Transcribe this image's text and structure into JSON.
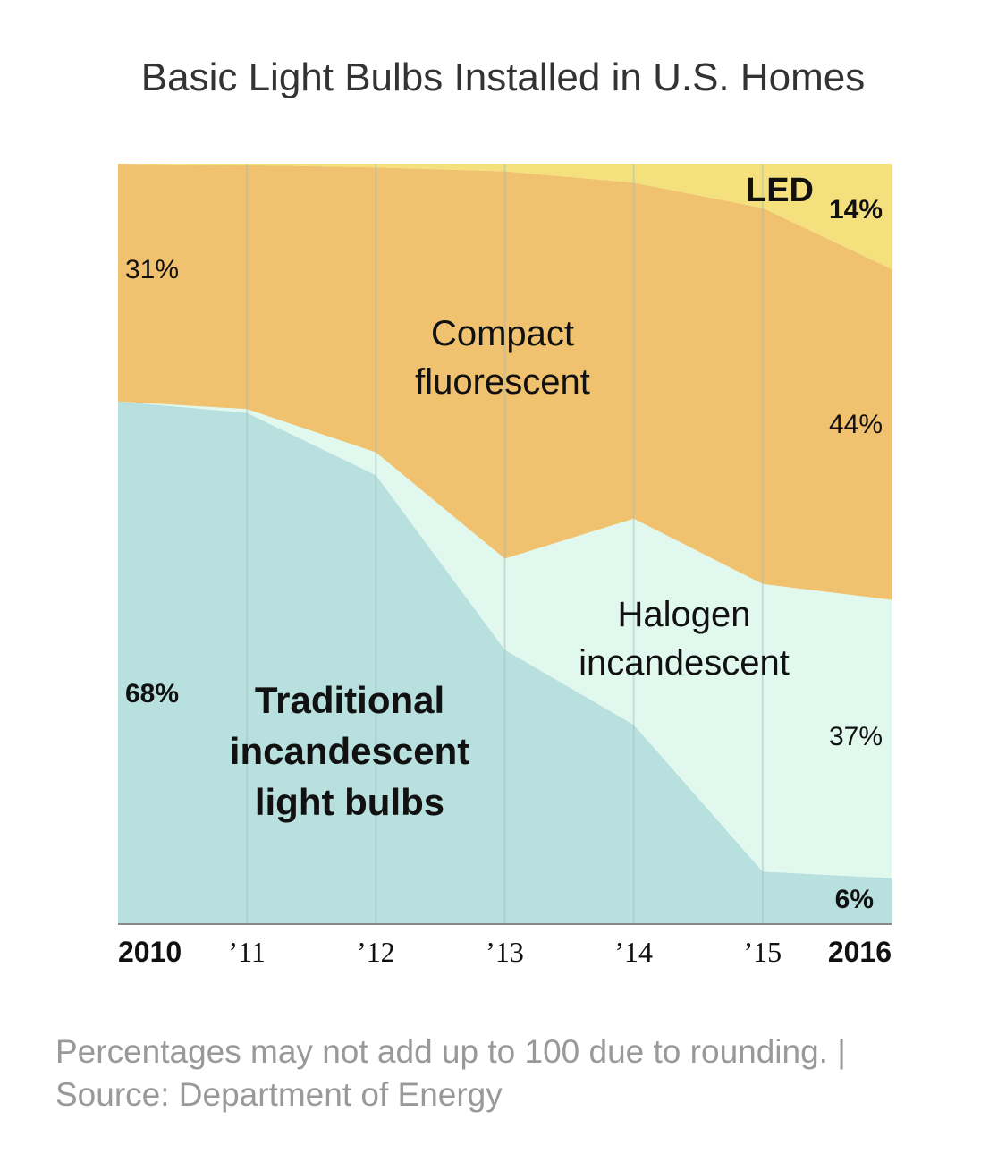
{
  "chart_data": {
    "type": "area",
    "title": "Basic Light Bulbs Installed in U.S. Homes",
    "stacking": "stacked-to-100-percent",
    "x": [
      2010,
      2011,
      2012,
      2013,
      2014,
      2015,
      2016
    ],
    "tick_labels": [
      "2010",
      "’11",
      "’12",
      "’13",
      "’14",
      "’15",
      "2016"
    ],
    "bold_ticks": [
      "2010",
      "2016"
    ],
    "ylim": [
      0,
      100
    ],
    "grid": true,
    "series": [
      {
        "key": "traditional",
        "name": "Traditional incandescent light bulbs",
        "label_lines": [
          "Traditional",
          "incandescent",
          "light bulbs"
        ],
        "color": "#b8e0de",
        "values": [
          68,
          67,
          59,
          36,
          26,
          7,
          6
        ]
      },
      {
        "key": "halogen",
        "name": "Halogen incandescent",
        "label_lines": [
          "Halogen",
          "incandescent"
        ],
        "color": "#e0f8ed",
        "values": [
          0,
          0.5,
          3,
          12,
          27,
          39,
          37
        ]
      },
      {
        "key": "cfl",
        "name": "Compact fluorescent",
        "label_lines": [
          "Compact",
          "fluorescent"
        ],
        "color": "#f0c16f",
        "values": [
          31,
          32,
          37.5,
          51,
          44,
          51,
          44
        ]
      },
      {
        "key": "led",
        "name": "LED",
        "label_lines": [
          "LED"
        ],
        "color": "#f4e07c",
        "values": [
          0,
          0.2,
          0.5,
          1,
          2.5,
          6,
          14
        ]
      }
    ],
    "annotations": [
      {
        "key": "cfl_2010",
        "text": "31%",
        "bold": false
      },
      {
        "key": "trad_2010",
        "text": "68%",
        "bold": true
      },
      {
        "key": "led_2016",
        "text": "14%",
        "bold": true
      },
      {
        "key": "cfl_2016",
        "text": "44%",
        "bold": false
      },
      {
        "key": "halogen_2016",
        "text": "37%",
        "bold": false
      },
      {
        "key": "trad_2016",
        "text": "6%",
        "bold": true
      }
    ]
  },
  "footnote": {
    "line1": "Percentages may not add up to 100 due to rounding. |",
    "line2": "Source: Department of Energy"
  },
  "colors": {
    "grid": "#9fbfbc",
    "axis": "#888888",
    "text": "#111111"
  }
}
